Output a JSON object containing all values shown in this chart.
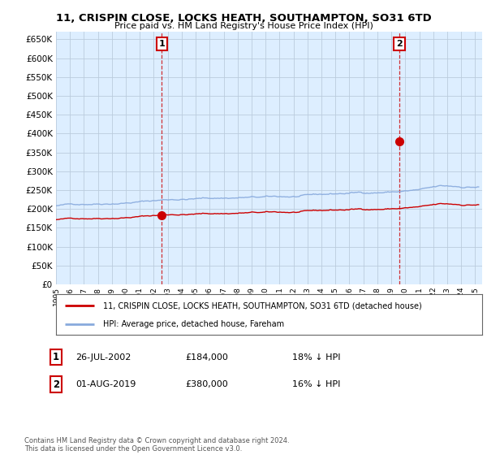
{
  "title": "11, CRISPIN CLOSE, LOCKS HEATH, SOUTHAMPTON, SO31 6TD",
  "subtitle": "Price paid vs. HM Land Registry's House Price Index (HPI)",
  "ylim": [
    0,
    670000
  ],
  "yticks": [
    0,
    50000,
    100000,
    150000,
    200000,
    250000,
    300000,
    350000,
    400000,
    450000,
    500000,
    550000,
    600000,
    650000
  ],
  "background_color": "#ffffff",
  "plot_bg_color": "#ddeeff",
  "grid_color": "#bbccdd",
  "sale1_year": 2002.58,
  "sale1_price": 184000,
  "sale2_year": 2019.58,
  "sale2_price": 380000,
  "sale_color": "#cc0000",
  "hpi_color": "#88aadd",
  "legend_text1": "11, CRISPIN CLOSE, LOCKS HEATH, SOUTHAMPTON, SO31 6TD (detached house)",
  "legend_text2": "HPI: Average price, detached house, Fareham",
  "annotation1_label": "1",
  "annotation1_date": "26-JUL-2002",
  "annotation1_price": "£184,000",
  "annotation1_hpi": "18% ↓ HPI",
  "annotation2_label": "2",
  "annotation2_date": "01-AUG-2019",
  "annotation2_price": "£380,000",
  "annotation2_hpi": "16% ↓ HPI",
  "footnote": "Contains HM Land Registry data © Crown copyright and database right 2024.\nThis data is licensed under the Open Government Licence v3.0.",
  "xmin": 1995,
  "xmax": 2025.5
}
